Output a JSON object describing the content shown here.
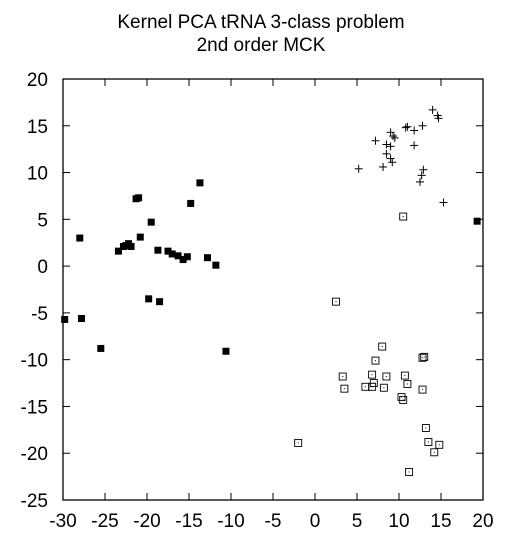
{
  "chart_data": {
    "type": "scatter",
    "title": "Kernel PCA tRNA 3-class problem",
    "subtitle": "2nd order MCK",
    "xlabel": "",
    "ylabel": "",
    "xlim": [
      -30,
      20
    ],
    "ylim": [
      -25,
      20
    ],
    "xticks": [
      "-30",
      "-25",
      "-20",
      "-15",
      "-10",
      "-5",
      "0",
      "5",
      "10",
      "15",
      "20"
    ],
    "yticks": [
      "20",
      "15",
      "10",
      "5",
      "0",
      "-5",
      "-10",
      "-15",
      "-20",
      "-25"
    ],
    "grid": false,
    "legend": "none",
    "series": [
      {
        "marker": "filled-square",
        "color": "#000000",
        "points": [
          [
            -21.3,
            7.2
          ],
          [
            -21.0,
            7.3
          ],
          [
            -13.7,
            8.9
          ],
          [
            -14.8,
            6.7
          ],
          [
            -19.5,
            4.7
          ],
          [
            -28.0,
            3.0
          ],
          [
            -20.8,
            3.1
          ],
          [
            -22.2,
            2.4
          ],
          [
            -22.5,
            2.2
          ],
          [
            -21.9,
            2.1
          ],
          [
            -22.8,
            2.1
          ],
          [
            -23.4,
            1.6
          ],
          [
            -18.7,
            1.7
          ],
          [
            -17.5,
            1.6
          ],
          [
            -17.0,
            1.3
          ],
          [
            -16.3,
            1.1
          ],
          [
            -15.7,
            0.7
          ],
          [
            -15.2,
            1.0
          ],
          [
            -12.8,
            0.9
          ],
          [
            -11.8,
            0.1
          ],
          [
            -19.8,
            -3.5
          ],
          [
            -18.5,
            -3.8
          ],
          [
            -29.8,
            -5.7
          ],
          [
            -27.8,
            -5.6
          ],
          [
            -25.5,
            -8.8
          ],
          [
            -10.6,
            -9.1
          ],
          [
            19.3,
            4.8
          ]
        ]
      },
      {
        "marker": "hollow-square",
        "color": "#000000",
        "points": [
          [
            10.5,
            5.3
          ],
          [
            2.5,
            -3.8
          ],
          [
            8.0,
            -8.6
          ],
          [
            7.2,
            -10.1
          ],
          [
            12.8,
            -9.8
          ],
          [
            13.0,
            -9.7
          ],
          [
            3.3,
            -11.8
          ],
          [
            6.8,
            -11.6
          ],
          [
            8.5,
            -11.8
          ],
          [
            10.7,
            -11.7
          ],
          [
            3.5,
            -13.1
          ],
          [
            6.0,
            -12.9
          ],
          [
            6.8,
            -12.9
          ],
          [
            7.0,
            -12.5
          ],
          [
            8.2,
            -13.0
          ],
          [
            11.0,
            -12.6
          ],
          [
            12.8,
            -13.2
          ],
          [
            10.3,
            -14.0
          ],
          [
            10.5,
            -14.3
          ],
          [
            13.2,
            -17.3
          ],
          [
            13.5,
            -18.8
          ],
          [
            14.8,
            -19.1
          ],
          [
            14.2,
            -19.9
          ],
          [
            -2.0,
            -18.9
          ],
          [
            11.2,
            -22.0
          ]
        ]
      },
      {
        "marker": "plus",
        "color": "#000000",
        "points": [
          [
            14.0,
            16.7
          ],
          [
            14.6,
            16.1
          ],
          [
            14.7,
            15.8
          ],
          [
            10.8,
            14.8
          ],
          [
            11.0,
            14.9
          ],
          [
            12.8,
            15.0
          ],
          [
            9.0,
            14.3
          ],
          [
            9.3,
            13.9
          ],
          [
            11.8,
            14.5
          ],
          [
            9.5,
            13.7
          ],
          [
            7.2,
            13.4
          ],
          [
            8.5,
            13.0
          ],
          [
            9.0,
            12.8
          ],
          [
            11.8,
            12.9
          ],
          [
            8.5,
            12.0
          ],
          [
            9.0,
            11.5
          ],
          [
            8.1,
            10.6
          ],
          [
            9.2,
            11.1
          ],
          [
            5.2,
            10.4
          ],
          [
            12.9,
            10.3
          ],
          [
            12.7,
            9.7
          ],
          [
            12.5,
            9.0
          ],
          [
            15.3,
            6.8
          ]
        ]
      }
    ]
  }
}
